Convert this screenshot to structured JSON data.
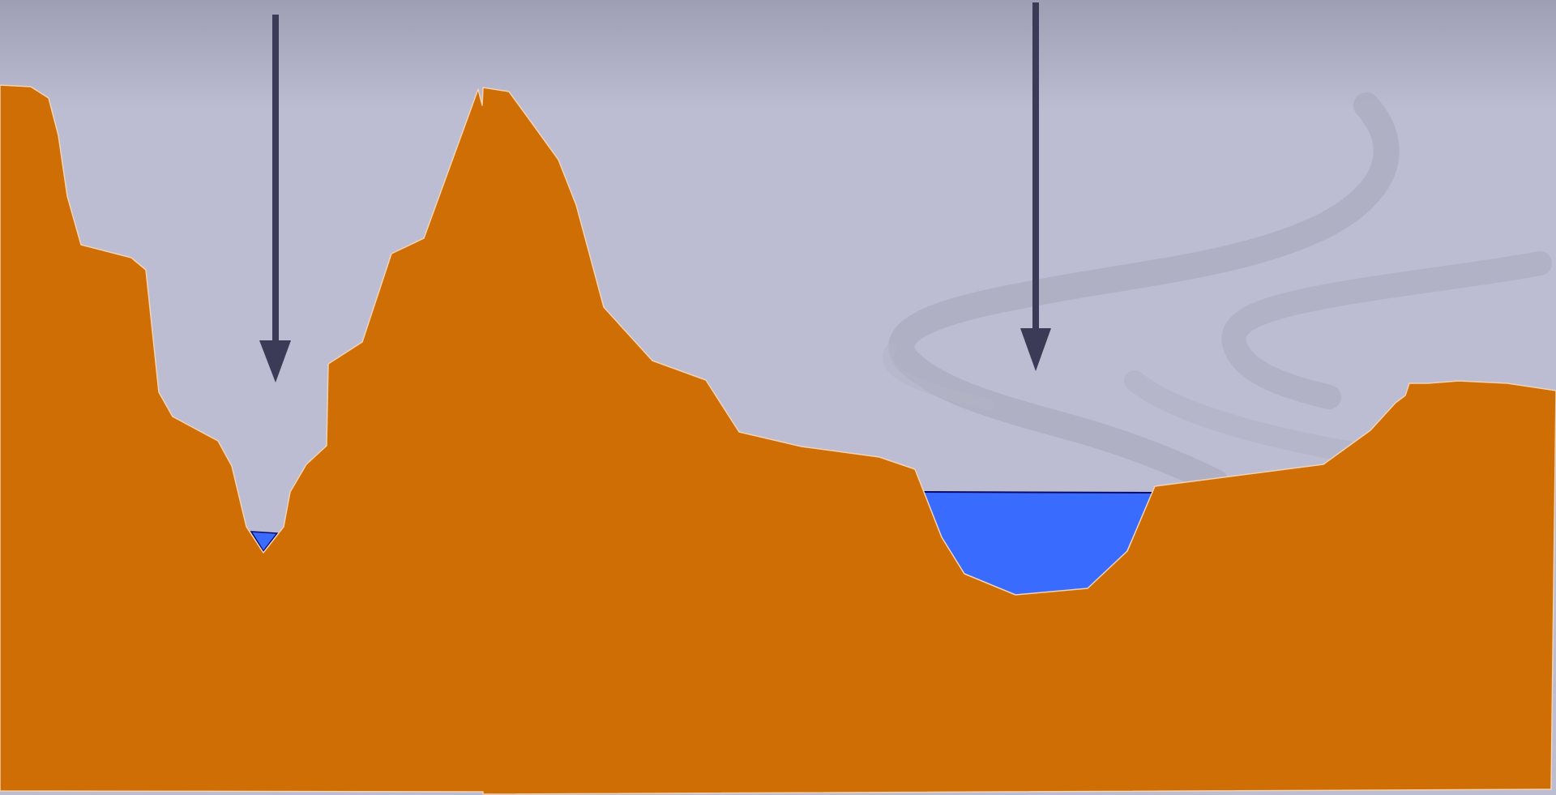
{
  "scene": {
    "colors": {
      "sky_top": "#9e9eb4",
      "sky": "#bcbcd2",
      "terrain": "#cf6e04",
      "terrain_outline": "#f3d3b1",
      "water": "#3a6bff",
      "water_surface": "#0a0a6a",
      "arrow": "#3b3b58",
      "wind": "#acacbf"
    },
    "icons": {
      "left_arrow": "down-arrow-icon",
      "right_arrow": "down-arrow-icon"
    },
    "elements": {
      "terrain": "mountain-terrain",
      "large_lake": "water-lake",
      "small_pool": "water-pool",
      "wind_swirls": "wind-swirl"
    }
  }
}
